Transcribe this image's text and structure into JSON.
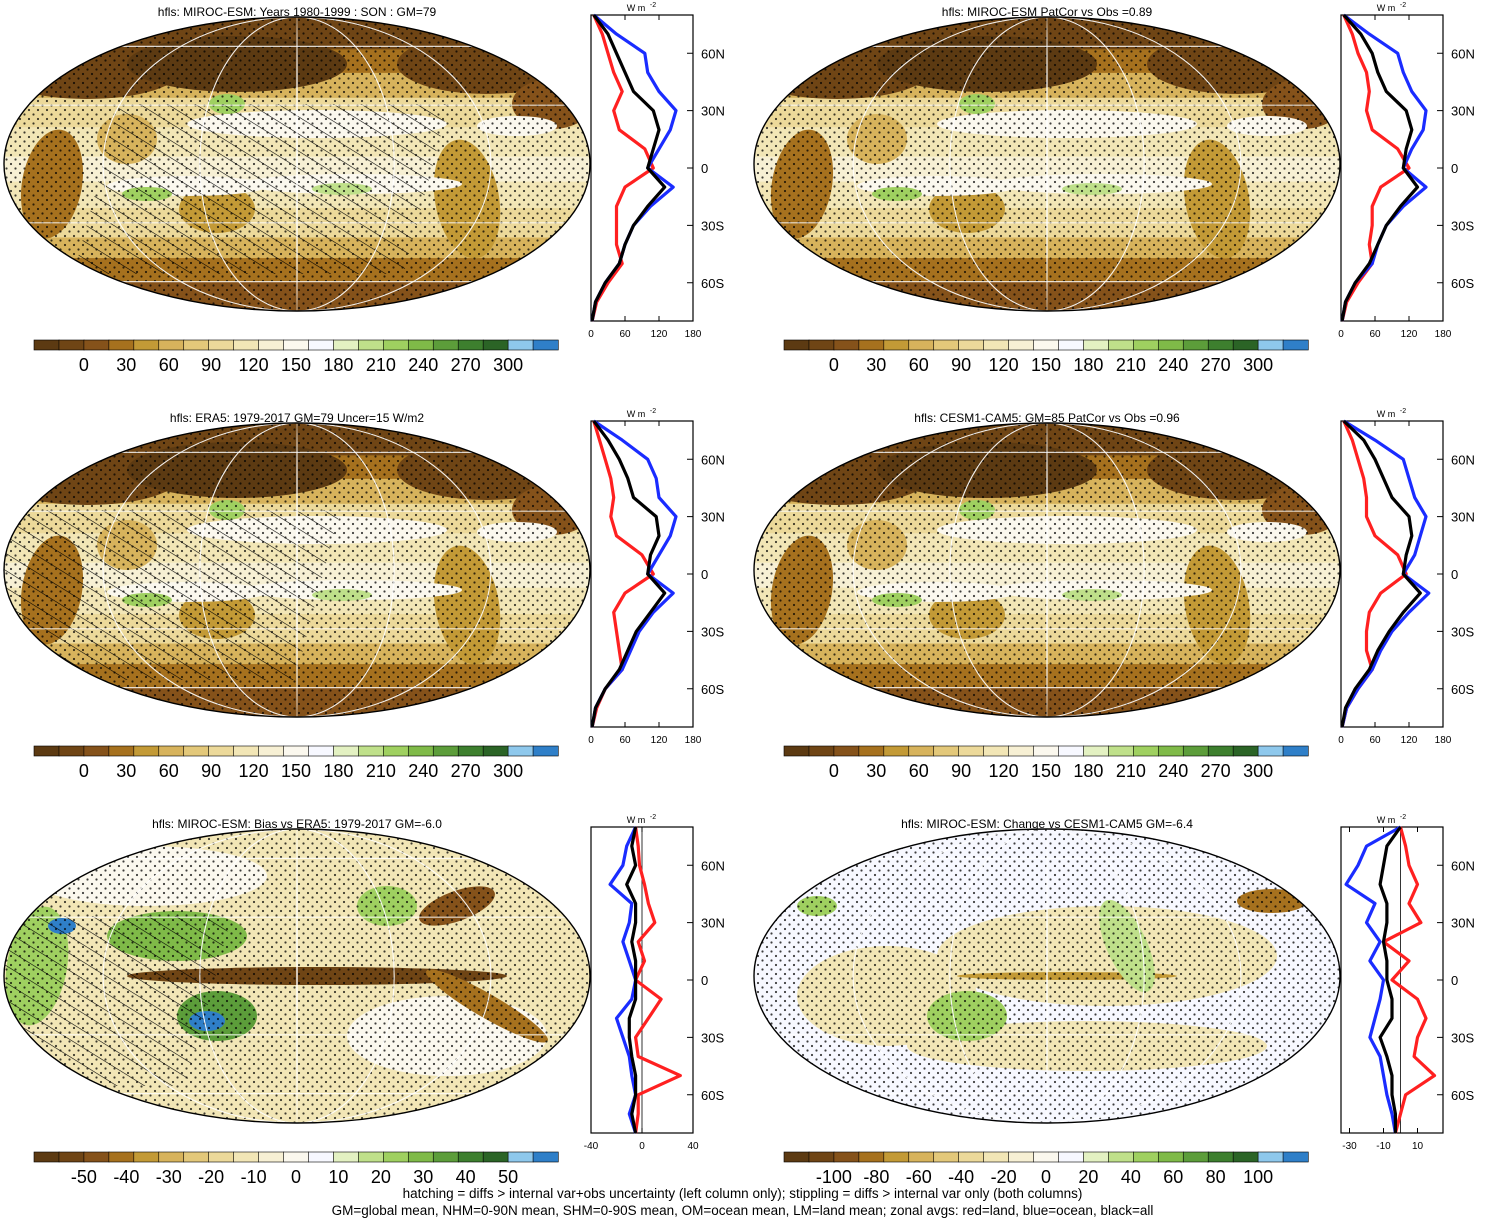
{
  "palettes": {
    "abs": [
      "#5c3a12",
      "#6f4515",
      "#85521a",
      "#a6711e",
      "#c39a36",
      "#d7b35c",
      "#e3c87a",
      "#ecd99a",
      "#f2e6b6",
      "#f7f0d4",
      "#fbf8ee",
      "#f7f8ff",
      "#e3f1c2",
      "#bfe08a",
      "#9fd060",
      "#7fba48",
      "#5c9d3a",
      "#3d7f2e",
      "#2b6426",
      "#8ec8ec",
      "#2f7fc8"
    ],
    "ocean_tint": "#f7f8ff",
    "land": "#8a5a20"
  },
  "footer": {
    "line1": "hatching = diffs > internal var+obs uncertainty (left column only); stippling = diffs > internal var only (both columns)",
    "line2": "GM=global mean, NHM=0-90N mean, SHM=0-90S mean, OM=ocean mean, LM=land mean; zonal avgs: red=land, blue=ocean, black=all"
  },
  "chart_data": [
    {
      "type": "heatmap",
      "panel": "map",
      "title": "hfls: MIROC-ESM: Years 1980-1999 : SON : GM=79",
      "colorbar_ticks": [
        "0",
        "30",
        "60",
        "90",
        "120",
        "150",
        "180",
        "210",
        "240",
        "270",
        "300"
      ],
      "palette": "abs",
      "style": "abs",
      "hatching": true,
      "zonal": {
        "type": "line",
        "unit_label": "W m",
        "unit_sup": "-2",
        "xlim": [
          0,
          180
        ],
        "xticks": [
          "0",
          "60",
          "120",
          "180"
        ],
        "ylim": [
          -80,
          80
        ],
        "yticks": [
          "60N",
          "30N",
          "0",
          "30S",
          "60S"
        ],
        "lat": [
          80,
          70,
          60,
          50,
          40,
          30,
          20,
          10,
          0,
          -10,
          -20,
          -30,
          -40,
          -50,
          -60,
          -70,
          -80
        ],
        "series": [
          {
            "name": "land",
            "color": "#ff2020",
            "values": [
              5,
              20,
              30,
              40,
              55,
              40,
              50,
              95,
              110,
              60,
              45,
              45,
              45,
              55,
              30,
              10,
              2
            ]
          },
          {
            "name": "ocean",
            "color": "#1a2cff",
            "values": [
              5,
              45,
              95,
              100,
              120,
              150,
              140,
              120,
              100,
              145,
              105,
              75,
              60,
              50,
              25,
              8,
              2
            ]
          },
          {
            "name": "all",
            "color": "#000000",
            "values": [
              5,
              30,
              45,
              60,
              75,
              110,
              120,
              110,
              100,
              130,
              100,
              75,
              60,
              50,
              25,
              8,
              2
            ]
          }
        ]
      }
    },
    {
      "type": "heatmap",
      "panel": "map",
      "title": "hfls: MIROC-ESM PatCor vs Obs =0.89",
      "colorbar_ticks": [
        "0",
        "30",
        "60",
        "90",
        "120",
        "150",
        "180",
        "210",
        "240",
        "270",
        "300"
      ],
      "palette": "abs",
      "style": "abs",
      "hatching": false,
      "zonal": {
        "type": "line",
        "unit_label": "W m",
        "unit_sup": "-2",
        "xlim": [
          0,
          180
        ],
        "xticks": [
          "0",
          "60",
          "120",
          "180"
        ],
        "ylim": [
          -80,
          80
        ],
        "yticks": [
          "60N",
          "30N",
          "0",
          "30S",
          "60S"
        ],
        "lat": [
          80,
          70,
          60,
          50,
          40,
          30,
          20,
          10,
          0,
          -10,
          -20,
          -30,
          -40,
          -50,
          -60,
          -70,
          -80
        ],
        "series": [
          {
            "name": "land",
            "color": "#ff2020",
            "values": [
              5,
              20,
              30,
              45,
              50,
              45,
              55,
              100,
              120,
              70,
              55,
              55,
              50,
              55,
              30,
              10,
              2
            ]
          },
          {
            "name": "ocean",
            "color": "#1a2cff",
            "values": [
              5,
              50,
              100,
              110,
              125,
              150,
              145,
              125,
              110,
              150,
              110,
              80,
              65,
              55,
              25,
              8,
              2
            ]
          },
          {
            "name": "all",
            "color": "#000000",
            "values": [
              5,
              35,
              55,
              65,
              80,
              115,
              125,
              115,
              110,
              135,
              105,
              80,
              65,
              50,
              25,
              8,
              2
            ]
          }
        ]
      }
    },
    {
      "type": "heatmap",
      "panel": "map",
      "title": "hfls: ERA5: 1979-2017 GM=79 Uncer=15 W/m2",
      "colorbar_ticks": [
        "0",
        "30",
        "60",
        "90",
        "120",
        "150",
        "180",
        "210",
        "240",
        "270",
        "300"
      ],
      "palette": "abs",
      "style": "abs",
      "hatching": true,
      "zonal": {
        "type": "line",
        "unit_label": "W m",
        "unit_sup": "-2",
        "xlim": [
          0,
          180
        ],
        "xticks": [
          "0",
          "60",
          "120",
          "180"
        ],
        "ylim": [
          -80,
          80
        ],
        "yticks": [
          "60N",
          "30N",
          "0",
          "30S",
          "60S"
        ],
        "lat": [
          80,
          70,
          60,
          50,
          40,
          30,
          20,
          10,
          0,
          -10,
          -20,
          -30,
          -40,
          -50,
          -60,
          -70,
          -80
        ],
        "series": [
          {
            "name": "land",
            "color": "#ff2020",
            "values": [
              5,
              15,
              25,
              35,
              40,
              35,
              45,
              90,
              110,
              60,
              40,
              45,
              50,
              55,
              25,
              10,
              2
            ]
          },
          {
            "name": "ocean",
            "color": "#1a2cff",
            "values": [
              5,
              55,
              100,
              115,
              120,
              150,
              140,
              120,
              100,
              145,
              110,
              85,
              70,
              55,
              25,
              8,
              2
            ]
          },
          {
            "name": "all",
            "color": "#000000",
            "values": [
              5,
              30,
              50,
              65,
              75,
              115,
              120,
              105,
              100,
              130,
              105,
              80,
              65,
              50,
              25,
              8,
              2
            ]
          }
        ]
      }
    },
    {
      "type": "heatmap",
      "panel": "map",
      "title": "hfls: CESM1-CAM5: GM=85 PatCor vs Obs =0.96",
      "colorbar_ticks": [
        "0",
        "30",
        "60",
        "90",
        "120",
        "150",
        "180",
        "210",
        "240",
        "270",
        "300"
      ],
      "palette": "abs",
      "style": "abs",
      "hatching": false,
      "zonal": {
        "type": "line",
        "unit_label": "W m",
        "unit_sup": "-2",
        "xlim": [
          0,
          180
        ],
        "xticks": [
          "0",
          "60",
          "120",
          "180"
        ],
        "ylim": [
          -80,
          80
        ],
        "yticks": [
          "60N",
          "30N",
          "0",
          "30S",
          "60S"
        ],
        "lat": [
          80,
          70,
          60,
          50,
          40,
          30,
          20,
          10,
          0,
          -10,
          -20,
          -30,
          -40,
          -50,
          -60,
          -70,
          -80
        ],
        "series": [
          {
            "name": "land",
            "color": "#ff2020",
            "values": [
              5,
              20,
              30,
              40,
              45,
              45,
              60,
              100,
              115,
              70,
              50,
              45,
              45,
              55,
              30,
              10,
              2
            ]
          },
          {
            "name": "ocean",
            "color": "#1a2cff",
            "values": [
              5,
              60,
              110,
              120,
              130,
              150,
              140,
              130,
              110,
              155,
              120,
              90,
              70,
              55,
              30,
              10,
              2
            ]
          },
          {
            "name": "all",
            "color": "#000000",
            "values": [
              5,
              40,
              60,
              75,
              90,
              120,
              125,
              115,
              110,
              140,
              110,
              85,
              65,
              50,
              25,
              8,
              2
            ]
          }
        ]
      }
    },
    {
      "type": "heatmap",
      "panel": "map",
      "title": "hfls: MIROC-ESM: Bias vs ERA5: 1979-2017  GM=-6.0",
      "colorbar_ticks": [
        "-50",
        "-40",
        "-30",
        "-20",
        "-10",
        "0",
        "10",
        "20",
        "30",
        "40",
        "50"
      ],
      "palette": "abs",
      "style": "bias",
      "hatching": true,
      "zonal": {
        "type": "line",
        "unit_label": "W m",
        "unit_sup": "-2",
        "xlim": [
          -40,
          40
        ],
        "xticks": [
          "-40",
          "0",
          "40"
        ],
        "ylim": [
          -80,
          80
        ],
        "yticks": [
          "60N",
          "30N",
          "0",
          "30S",
          "60S"
        ],
        "lat": [
          80,
          70,
          60,
          50,
          40,
          30,
          20,
          10,
          0,
          -10,
          -20,
          -30,
          -40,
          -50,
          -60,
          -70,
          -80
        ],
        "series": [
          {
            "name": "land",
            "color": "#ff2020",
            "values": [
              -5,
              -3,
              -2,
              2,
              5,
              10,
              -3,
              2,
              -5,
              15,
              5,
              -5,
              -3,
              30,
              -3,
              -3,
              -5
            ]
          },
          {
            "name": "ocean",
            "color": "#1a2cff",
            "values": [
              -5,
              -12,
              -15,
              -25,
              -8,
              -10,
              -15,
              -10,
              -5,
              -8,
              -20,
              -15,
              -10,
              -8,
              -5,
              -10,
              -5
            ]
          },
          {
            "name": "all",
            "color": "#000000",
            "values": [
              -5,
              -8,
              -5,
              -12,
              -5,
              -5,
              -8,
              -5,
              -5,
              -5,
              -10,
              -10,
              -8,
              -5,
              -5,
              -8,
              -5
            ]
          }
        ]
      }
    },
    {
      "type": "heatmap",
      "panel": "map",
      "title": "hfls: MIROC-ESM: Change vs CESM1-CAM5 GM=-6.4",
      "colorbar_ticks": [
        "-100",
        "-80",
        "-60",
        "-40",
        "-20",
        "0",
        "20",
        "40",
        "60",
        "80",
        "100"
      ],
      "palette": "abs",
      "style": "change",
      "hatching": false,
      "zonal": {
        "type": "line",
        "unit_label": "W m",
        "unit_sup": "-2",
        "xlim": [
          -35,
          25
        ],
        "xticks": [
          "-30",
          "-10",
          "10"
        ],
        "ylim": [
          -80,
          80
        ],
        "yticks": [
          "60N",
          "30N",
          "0",
          "30S",
          "60S"
        ],
        "lat": [
          80,
          70,
          60,
          50,
          40,
          30,
          20,
          10,
          0,
          -10,
          -20,
          -30,
          -40,
          -50,
          -60,
          -70,
          -80
        ],
        "series": [
          {
            "name": "land",
            "color": "#ff2020",
            "values": [
              0,
              3,
              5,
              10,
              5,
              12,
              -10,
              5,
              -5,
              10,
              15,
              10,
              8,
              20,
              3,
              0,
              -3
            ]
          },
          {
            "name": "ocean",
            "color": "#1a2cff",
            "values": [
              0,
              -20,
              -25,
              -32,
              -15,
              -20,
              -12,
              -18,
              -10,
              -12,
              -15,
              -18,
              -12,
              -10,
              -8,
              -5,
              -3
            ]
          },
          {
            "name": "all",
            "color": "#000000",
            "values": [
              0,
              -8,
              -10,
              -12,
              -8,
              -8,
              -10,
              -8,
              -8,
              -5,
              -5,
              -12,
              -8,
              -5,
              -5,
              -3,
              -3
            ]
          }
        ]
      }
    }
  ]
}
